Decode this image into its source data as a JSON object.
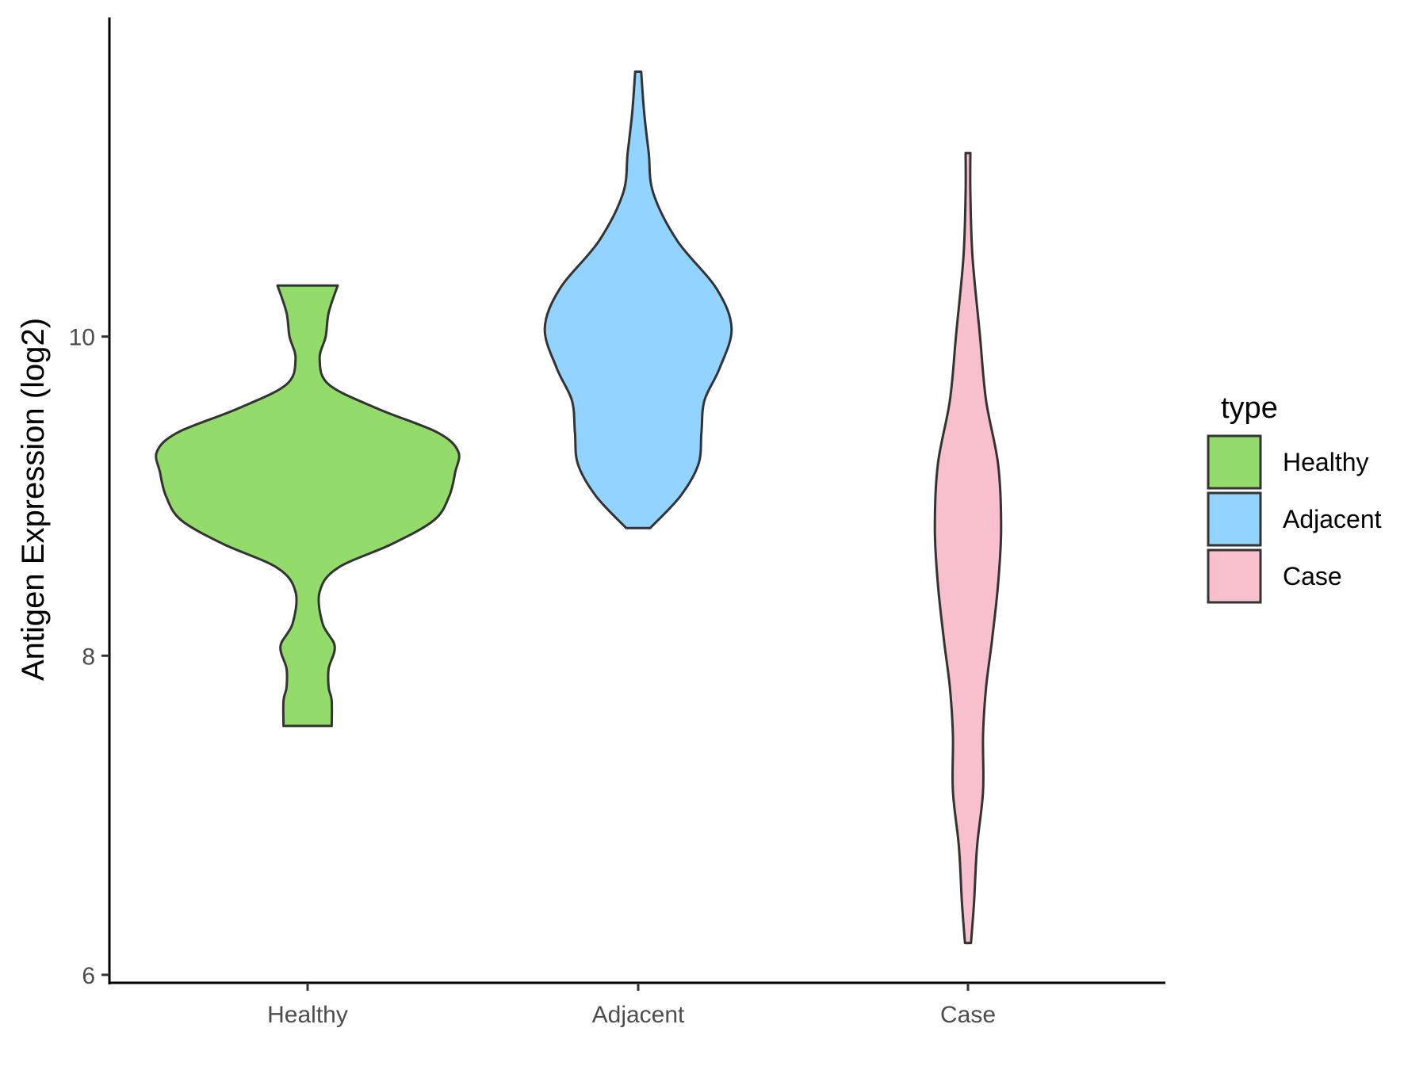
{
  "chart_data": {
    "type": "violin",
    "title": "",
    "xlabel": "",
    "ylabel": "Antigen Expression (log2)",
    "categories": [
      "Healthy",
      "Adjacent",
      "Case"
    ],
    "ylim": [
      5.95,
      12.0
    ],
    "yticks": [
      6,
      8,
      10
    ],
    "ytick_labels": [
      "6",
      "8",
      "10"
    ],
    "grid": false,
    "legend": {
      "title": "type",
      "position": "right",
      "entries": [
        {
          "label": "Healthy",
          "color": "#93DB6B"
        },
        {
          "label": "Adjacent",
          "color": "#93D3FF"
        },
        {
          "label": "Case",
          "color": "#F7C0CC"
        }
      ]
    },
    "series": [
      {
        "category": "Healthy",
        "color": "#93DB6B",
        "min": 7.56,
        "max": 10.32,
        "density_profile": [
          [
            7.56,
            0.08
          ],
          [
            7.72,
            0.08
          ],
          [
            7.8,
            0.07
          ],
          [
            7.92,
            0.07
          ],
          [
            8.06,
            0.09
          ],
          [
            8.2,
            0.05
          ],
          [
            8.4,
            0.04
          ],
          [
            8.55,
            0.1
          ],
          [
            8.7,
            0.28
          ],
          [
            8.85,
            0.42
          ],
          [
            9.0,
            0.47
          ],
          [
            9.15,
            0.49
          ],
          [
            9.28,
            0.5
          ],
          [
            9.4,
            0.43
          ],
          [
            9.55,
            0.23
          ],
          [
            9.7,
            0.07
          ],
          [
            9.86,
            0.04
          ],
          [
            10.0,
            0.06
          ],
          [
            10.15,
            0.07
          ],
          [
            10.32,
            0.1
          ]
        ]
      },
      {
        "category": "Adjacent",
        "color": "#93D3FF",
        "min": 8.8,
        "max": 11.66,
        "density_profile": [
          [
            8.8,
            0.04
          ],
          [
            9.0,
            0.14
          ],
          [
            9.2,
            0.2
          ],
          [
            9.4,
            0.21
          ],
          [
            9.6,
            0.22
          ],
          [
            9.8,
            0.27
          ],
          [
            10.05,
            0.31
          ],
          [
            10.3,
            0.26
          ],
          [
            10.6,
            0.13
          ],
          [
            10.9,
            0.05
          ],
          [
            11.15,
            0.035
          ],
          [
            11.4,
            0.02
          ],
          [
            11.66,
            0.01
          ]
        ]
      },
      {
        "category": "Case",
        "color": "#F7C0CC",
        "min": 6.2,
        "max": 11.15,
        "density_profile": [
          [
            6.2,
            0.01
          ],
          [
            6.45,
            0.02
          ],
          [
            6.8,
            0.03
          ],
          [
            7.15,
            0.05
          ],
          [
            7.5,
            0.05
          ],
          [
            7.8,
            0.06
          ],
          [
            8.1,
            0.08
          ],
          [
            8.45,
            0.1
          ],
          [
            8.8,
            0.11
          ],
          [
            9.2,
            0.1
          ],
          [
            9.6,
            0.06
          ],
          [
            10.0,
            0.04
          ],
          [
            10.5,
            0.015
          ],
          [
            10.9,
            0.008
          ],
          [
            11.15,
            0.008
          ]
        ]
      }
    ]
  }
}
